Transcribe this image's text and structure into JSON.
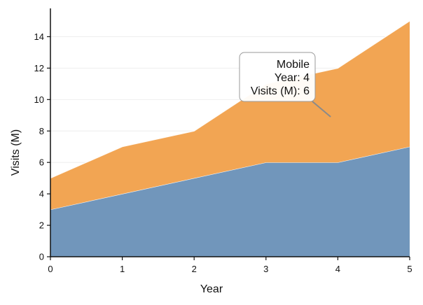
{
  "chart_data": {
    "type": "area",
    "stacked": true,
    "title": "",
    "xlabel": "Year",
    "ylabel": "Visits (M)",
    "x": [
      0,
      1,
      2,
      3,
      4,
      5
    ],
    "xlim": [
      0,
      5
    ],
    "ylim": [
      0,
      15.8
    ],
    "xticks": [
      0,
      1,
      2,
      3,
      4,
      5
    ],
    "yticks": [
      0,
      2,
      4,
      6,
      8,
      10,
      12,
      14
    ],
    "grid": "horizontal-faint",
    "legend": "none",
    "series": [
      {
        "key": "desktop",
        "values": [
          3,
          4,
          5,
          6,
          6,
          7
        ],
        "color": "#7196bb"
      },
      {
        "key": "mobile",
        "name": "Mobile",
        "values": [
          2,
          3,
          3,
          5,
          6,
          8
        ],
        "color": "#f2a553"
      }
    ],
    "tooltip": {
      "series": "Mobile",
      "line_year": "Year: 4",
      "line_visits": "Visits (M): 6",
      "x": 3.9,
      "y": 8.9
    }
  }
}
